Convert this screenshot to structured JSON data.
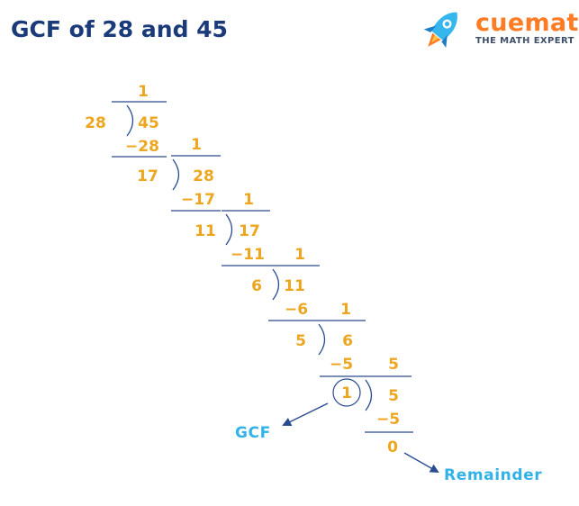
{
  "title": "GCF of 28 and 45",
  "brand": {
    "name": "cuemath",
    "tagline": "THE MATH EXPERT",
    "colors": {
      "primary": "#ff7b24",
      "rocket_blue": "#35b6ec",
      "tagline": "#3f4f6a"
    }
  },
  "steps": [
    {
      "divisor": "28",
      "dividend": "45",
      "quotient": "1",
      "subtract": "−28",
      "remainder": "17"
    },
    {
      "divisor": "17",
      "dividend": "28",
      "quotient": "1",
      "subtract": "−17",
      "remainder": "11"
    },
    {
      "divisor": "11",
      "dividend": "17",
      "quotient": "1",
      "subtract": "−11",
      "remainder": "6"
    },
    {
      "divisor": "6",
      "dividend": "11",
      "quotient": "1",
      "subtract": "−6",
      "remainder": "5"
    },
    {
      "divisor": "5",
      "dividend": "6",
      "quotient": "1",
      "subtract": "−5",
      "remainder": "1"
    },
    {
      "divisor": "1",
      "dividend": "5",
      "quotient": "5",
      "subtract": "−5",
      "remainder": "0"
    }
  ],
  "labels": {
    "gcf": "GCF",
    "remainder": "Remainder"
  },
  "colors": {
    "numbers": "#eda61f",
    "lines": "#2a4b8f",
    "labels": "#33b2e8",
    "title": "#1b3a7a"
  }
}
